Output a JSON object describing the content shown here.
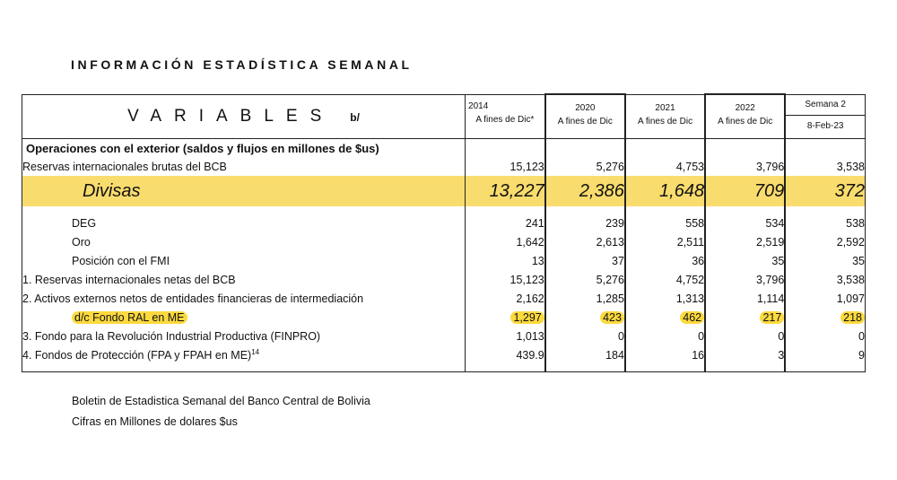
{
  "heading": "INFORMACIÓN ESTADÍSTICA SEMANAL",
  "table": {
    "title": "VARIABLES",
    "title_suffix": "b/",
    "columns": [
      {
        "year": "2014",
        "sub": "A  fines de Dic*"
      },
      {
        "year": "2020",
        "sub": "A fines de Dic"
      },
      {
        "year": "2021",
        "sub": "A fines de Dic"
      },
      {
        "year": "2022",
        "sub": "A fines de Dic"
      },
      {
        "year": "Semana 2",
        "sub": "8-Feb-23"
      }
    ],
    "section_title": "Operaciones con el exterior (saldos y flujos en millones de $us)",
    "rows": [
      {
        "label": "Reservas internacionales brutas del BCB",
        "values": [
          "15,123",
          "5,276",
          "4,753",
          "3,796",
          "3,538"
        ]
      },
      {
        "label": "Divisas",
        "values": [
          "13,227",
          "2,386",
          "1,648",
          "709",
          "372"
        ]
      },
      {
        "label": "DEG",
        "values": [
          "241",
          "239",
          "558",
          "534",
          "538"
        ]
      },
      {
        "label": "Oro",
        "values": [
          "1,642",
          "2,613",
          "2,511",
          "2,519",
          "2,592"
        ]
      },
      {
        "label": "Posición con el FMI",
        "values": [
          "13",
          "37",
          "36",
          "35",
          "35"
        ]
      },
      {
        "label": "1. Reservas internacionales netas del BCB",
        "values": [
          "15,123",
          "5,276",
          "4,752",
          "3,796",
          "3,538"
        ]
      },
      {
        "label": "2. Activos externos netos de entidades financieras de intermediación",
        "values": [
          "2,162",
          "1,285",
          "1,313",
          "1,114",
          "1,097"
        ]
      },
      {
        "label": "d/c Fondo RAL en ME",
        "values": [
          "1,297",
          "423",
          "462",
          "217",
          "218"
        ]
      },
      {
        "label": "3. Fondo para la Revolución Industrial Productiva (FINPRO)",
        "values": [
          "1,013",
          "0",
          "0",
          "0",
          "0"
        ]
      },
      {
        "label": "4. Fondos  de Protección (FPA y FPAH en ME)",
        "label_sup": "14",
        "values": [
          "439.9",
          "184",
          "16",
          "3",
          "9"
        ]
      }
    ]
  },
  "footer": {
    "line1": "Boletin de Estadistica Semanal del Banco Central de Bolivia",
    "line2": "Cifras en Millones de dolares $us"
  },
  "colors": {
    "highlight_row": "#f9dc6e",
    "highlight_marker": "#fcd93f"
  }
}
